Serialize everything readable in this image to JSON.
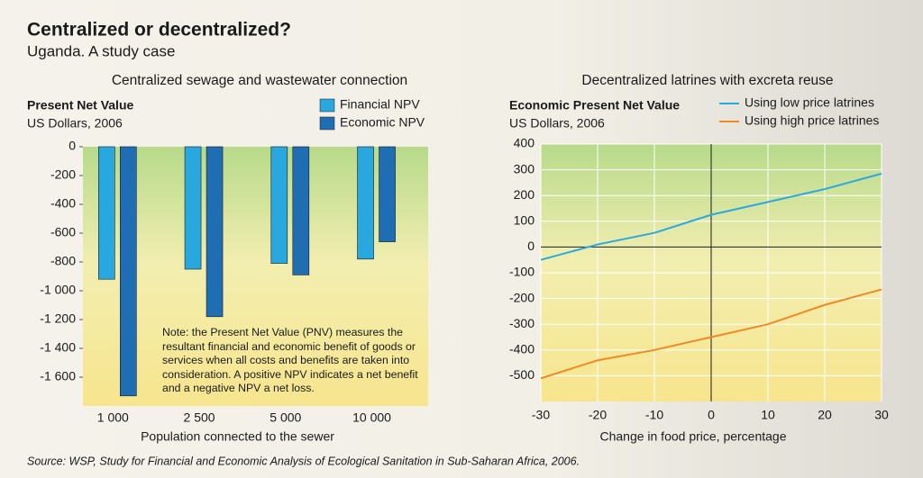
{
  "title": "Centralized or decentralized?",
  "subtitle": "Uganda. A study case",
  "source": "Source: WSP, Study for Financial and Economic Analysis of Ecological Sanitation in Sub-Saharan Africa, 2006.",
  "chart_data": [
    {
      "type": "bar",
      "title": "Centralized sewage and wastewater connection",
      "y_label": "Present Net Value",
      "y_unit": "US Dollars, 2006",
      "x_label": "Population connected to the sewer",
      "note": "Note: the Present Net Value (PNV) measures the resultant financial and economic benefit of goods or services when all costs and benefits are taken into consideration. A positive NPV indicates a net benefit and a negative NPV a net loss.",
      "categories": [
        "1 000",
        "2 500",
        "5 000",
        "10 000"
      ],
      "series": [
        {
          "name": "Financial NPV",
          "color": "#29a8e0",
          "values": [
            -920,
            -850,
            -810,
            -780
          ]
        },
        {
          "name": "Economic NPV",
          "color": "#1f6db3",
          "values": [
            -1730,
            -1180,
            -890,
            -660
          ]
        }
      ],
      "ylim": [
        -1800,
        0
      ],
      "yticks": [
        0,
        -200,
        -400,
        -600,
        -800,
        {
          "value": -1000,
          "label": "-1 000"
        },
        {
          "value": -1200,
          "label": "-1 200"
        },
        {
          "value": -1400,
          "label": "-1 400"
        },
        {
          "value": -1600,
          "label": "-1 600"
        }
      ]
    },
    {
      "type": "line",
      "title": "Decentralized latrines with excreta reuse",
      "y_label": "Economic Present Net Value",
      "y_unit": "US Dollars, 2006",
      "x_label": "Change in food price, percentage",
      "x": [
        -30,
        -20,
        -10,
        0,
        10,
        20,
        30
      ],
      "series": [
        {
          "name": "Using low price latrines",
          "color": "#2aa9e0",
          "values": [
            -50,
            10,
            55,
            125,
            175,
            225,
            285
          ]
        },
        {
          "name": "Using high price latrines",
          "color": "#f08a24",
          "values": [
            -510,
            -440,
            -400,
            -350,
            -300,
            -225,
            -165
          ]
        }
      ],
      "xlim": [
        -30,
        30
      ],
      "xticks": [
        -30,
        -20,
        -10,
        0,
        10,
        20,
        30
      ],
      "ylim": [
        -600,
        400
      ],
      "yticks": [
        400,
        300,
        200,
        100,
        0,
        -100,
        -200,
        -300,
        -400,
        -500
      ],
      "grid": true
    }
  ]
}
